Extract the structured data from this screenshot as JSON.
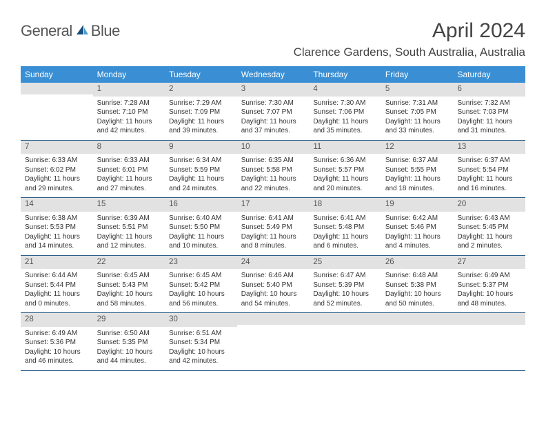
{
  "brand": {
    "part1": "General",
    "part2": "Blue"
  },
  "title": "April 2024",
  "location": "Clarence Gardens, South Australia, Australia",
  "colors": {
    "header_bg": "#3a8fd4",
    "header_text": "#ffffff",
    "daynum_bg": "#e2e2e2",
    "daynum_text": "#555555",
    "week_border": "#2d5f8a",
    "body_text": "#333333",
    "title_text": "#444444",
    "logo_gray": "#555555",
    "logo_blue": "#2d7bc0",
    "sail_dark": "#1a4d7a",
    "sail_light": "#4a9fd8"
  },
  "dayNames": [
    "Sunday",
    "Monday",
    "Tuesday",
    "Wednesday",
    "Thursday",
    "Friday",
    "Saturday"
  ],
  "weeks": [
    [
      {
        "n": "",
        "sr": "",
        "ss": "",
        "dl": ""
      },
      {
        "n": "1",
        "sr": "Sunrise: 7:28 AM",
        "ss": "Sunset: 7:10 PM",
        "dl": "Daylight: 11 hours and 42 minutes."
      },
      {
        "n": "2",
        "sr": "Sunrise: 7:29 AM",
        "ss": "Sunset: 7:09 PM",
        "dl": "Daylight: 11 hours and 39 minutes."
      },
      {
        "n": "3",
        "sr": "Sunrise: 7:30 AM",
        "ss": "Sunset: 7:07 PM",
        "dl": "Daylight: 11 hours and 37 minutes."
      },
      {
        "n": "4",
        "sr": "Sunrise: 7:30 AM",
        "ss": "Sunset: 7:06 PM",
        "dl": "Daylight: 11 hours and 35 minutes."
      },
      {
        "n": "5",
        "sr": "Sunrise: 7:31 AM",
        "ss": "Sunset: 7:05 PM",
        "dl": "Daylight: 11 hours and 33 minutes."
      },
      {
        "n": "6",
        "sr": "Sunrise: 7:32 AM",
        "ss": "Sunset: 7:03 PM",
        "dl": "Daylight: 11 hours and 31 minutes."
      }
    ],
    [
      {
        "n": "7",
        "sr": "Sunrise: 6:33 AM",
        "ss": "Sunset: 6:02 PM",
        "dl": "Daylight: 11 hours and 29 minutes."
      },
      {
        "n": "8",
        "sr": "Sunrise: 6:33 AM",
        "ss": "Sunset: 6:01 PM",
        "dl": "Daylight: 11 hours and 27 minutes."
      },
      {
        "n": "9",
        "sr": "Sunrise: 6:34 AM",
        "ss": "Sunset: 5:59 PM",
        "dl": "Daylight: 11 hours and 24 minutes."
      },
      {
        "n": "10",
        "sr": "Sunrise: 6:35 AM",
        "ss": "Sunset: 5:58 PM",
        "dl": "Daylight: 11 hours and 22 minutes."
      },
      {
        "n": "11",
        "sr": "Sunrise: 6:36 AM",
        "ss": "Sunset: 5:57 PM",
        "dl": "Daylight: 11 hours and 20 minutes."
      },
      {
        "n": "12",
        "sr": "Sunrise: 6:37 AM",
        "ss": "Sunset: 5:55 PM",
        "dl": "Daylight: 11 hours and 18 minutes."
      },
      {
        "n": "13",
        "sr": "Sunrise: 6:37 AM",
        "ss": "Sunset: 5:54 PM",
        "dl": "Daylight: 11 hours and 16 minutes."
      }
    ],
    [
      {
        "n": "14",
        "sr": "Sunrise: 6:38 AM",
        "ss": "Sunset: 5:53 PM",
        "dl": "Daylight: 11 hours and 14 minutes."
      },
      {
        "n": "15",
        "sr": "Sunrise: 6:39 AM",
        "ss": "Sunset: 5:51 PM",
        "dl": "Daylight: 11 hours and 12 minutes."
      },
      {
        "n": "16",
        "sr": "Sunrise: 6:40 AM",
        "ss": "Sunset: 5:50 PM",
        "dl": "Daylight: 11 hours and 10 minutes."
      },
      {
        "n": "17",
        "sr": "Sunrise: 6:41 AM",
        "ss": "Sunset: 5:49 PM",
        "dl": "Daylight: 11 hours and 8 minutes."
      },
      {
        "n": "18",
        "sr": "Sunrise: 6:41 AM",
        "ss": "Sunset: 5:48 PM",
        "dl": "Daylight: 11 hours and 6 minutes."
      },
      {
        "n": "19",
        "sr": "Sunrise: 6:42 AM",
        "ss": "Sunset: 5:46 PM",
        "dl": "Daylight: 11 hours and 4 minutes."
      },
      {
        "n": "20",
        "sr": "Sunrise: 6:43 AM",
        "ss": "Sunset: 5:45 PM",
        "dl": "Daylight: 11 hours and 2 minutes."
      }
    ],
    [
      {
        "n": "21",
        "sr": "Sunrise: 6:44 AM",
        "ss": "Sunset: 5:44 PM",
        "dl": "Daylight: 11 hours and 0 minutes."
      },
      {
        "n": "22",
        "sr": "Sunrise: 6:45 AM",
        "ss": "Sunset: 5:43 PM",
        "dl": "Daylight: 10 hours and 58 minutes."
      },
      {
        "n": "23",
        "sr": "Sunrise: 6:45 AM",
        "ss": "Sunset: 5:42 PM",
        "dl": "Daylight: 10 hours and 56 minutes."
      },
      {
        "n": "24",
        "sr": "Sunrise: 6:46 AM",
        "ss": "Sunset: 5:40 PM",
        "dl": "Daylight: 10 hours and 54 minutes."
      },
      {
        "n": "25",
        "sr": "Sunrise: 6:47 AM",
        "ss": "Sunset: 5:39 PM",
        "dl": "Daylight: 10 hours and 52 minutes."
      },
      {
        "n": "26",
        "sr": "Sunrise: 6:48 AM",
        "ss": "Sunset: 5:38 PM",
        "dl": "Daylight: 10 hours and 50 minutes."
      },
      {
        "n": "27",
        "sr": "Sunrise: 6:49 AM",
        "ss": "Sunset: 5:37 PM",
        "dl": "Daylight: 10 hours and 48 minutes."
      }
    ],
    [
      {
        "n": "28",
        "sr": "Sunrise: 6:49 AM",
        "ss": "Sunset: 5:36 PM",
        "dl": "Daylight: 10 hours and 46 minutes."
      },
      {
        "n": "29",
        "sr": "Sunrise: 6:50 AM",
        "ss": "Sunset: 5:35 PM",
        "dl": "Daylight: 10 hours and 44 minutes."
      },
      {
        "n": "30",
        "sr": "Sunrise: 6:51 AM",
        "ss": "Sunset: 5:34 PM",
        "dl": "Daylight: 10 hours and 42 minutes."
      },
      {
        "n": "",
        "sr": "",
        "ss": "",
        "dl": ""
      },
      {
        "n": "",
        "sr": "",
        "ss": "",
        "dl": ""
      },
      {
        "n": "",
        "sr": "",
        "ss": "",
        "dl": ""
      },
      {
        "n": "",
        "sr": "",
        "ss": "",
        "dl": ""
      }
    ]
  ]
}
